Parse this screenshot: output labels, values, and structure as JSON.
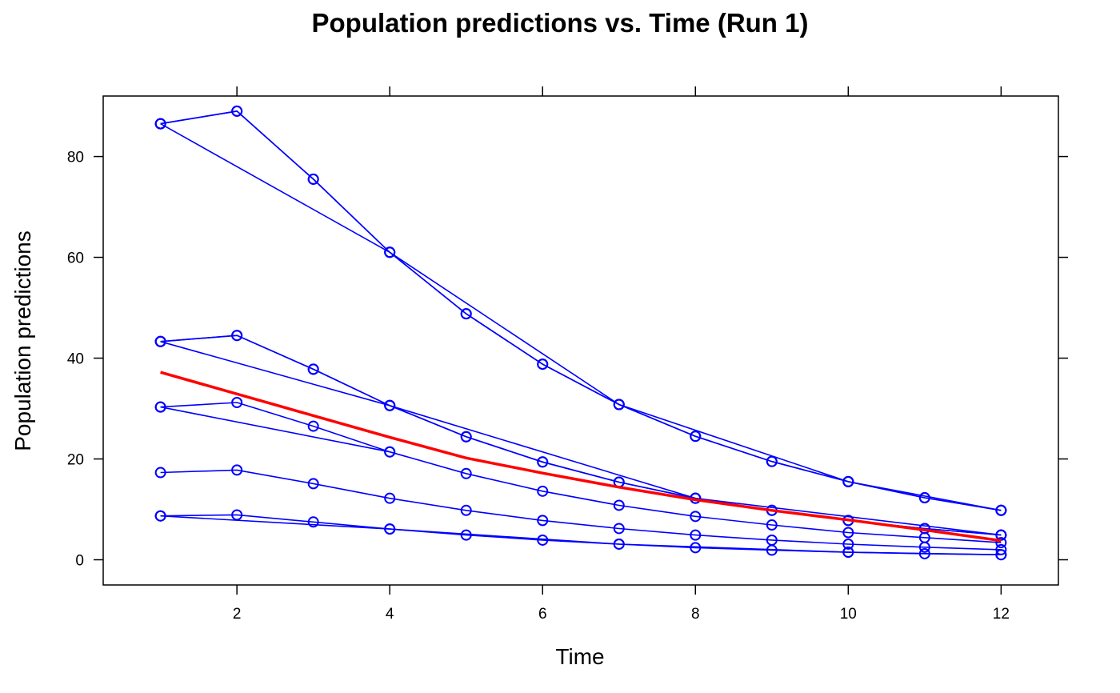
{
  "chart_data": {
    "type": "line",
    "title": "Population predictions vs. Time (Run 1)",
    "xlabel": "Time",
    "ylabel": "Population predictions",
    "xlim": [
      0.25,
      12.75
    ],
    "ylim": [
      -5,
      92
    ],
    "xticks": [
      2,
      4,
      6,
      8,
      10,
      12
    ],
    "yticks": [
      0,
      20,
      40,
      60,
      80
    ],
    "grid": false,
    "box": true,
    "series_color": "#0000ff",
    "marker": "open-circle",
    "series": [
      {
        "x": [
          1,
          2,
          3,
          4,
          5,
          6,
          7,
          8,
          9,
          10,
          11,
          12
        ],
        "y": [
          86.5,
          89.0,
          75.5,
          61.0,
          48.8,
          38.8,
          30.8,
          24.5,
          19.5,
          15.5,
          12.3,
          9.8
        ]
      },
      {
        "x": [
          1,
          2,
          3,
          4,
          5,
          6,
          7,
          8,
          9,
          10,
          11,
          12
        ],
        "y": [
          86.5,
          89.0,
          75.5,
          61.0,
          48.8,
          38.8,
          30.8,
          24.5,
          19.5,
          15.5,
          12.3,
          9.8
        ]
      },
      {
        "x": [
          1,
          4,
          7,
          10,
          12
        ],
        "y": [
          86.5,
          61.0,
          30.8,
          15.5,
          9.8
        ]
      },
      {
        "x": [
          1,
          2,
          3,
          4,
          5,
          6,
          7,
          8,
          9,
          10,
          11,
          12
        ],
        "y": [
          43.3,
          44.5,
          37.8,
          30.6,
          24.4,
          19.4,
          15.4,
          12.2,
          9.8,
          7.8,
          6.2,
          4.9
        ]
      },
      {
        "x": [
          1,
          2,
          3,
          4,
          5,
          6,
          7,
          8,
          9,
          10,
          11,
          12
        ],
        "y": [
          43.3,
          44.5,
          37.8,
          30.6,
          24.4,
          19.4,
          15.4,
          12.2,
          9.8,
          7.8,
          6.2,
          4.9
        ]
      },
      {
        "x": [
          1,
          4,
          8,
          12
        ],
        "y": [
          43.3,
          30.6,
          12.2,
          4.9
        ]
      },
      {
        "x": [
          1,
          2,
          3,
          4,
          5,
          6,
          7,
          8,
          9,
          10,
          11,
          12
        ],
        "y": [
          30.3,
          31.2,
          26.5,
          21.4,
          17.1,
          13.6,
          10.8,
          8.6,
          6.9,
          5.4,
          4.4,
          3.4
        ]
      },
      {
        "x": [
          1,
          4
        ],
        "y": [
          30.3,
          21.4
        ]
      },
      {
        "x": [
          1,
          2,
          3,
          4,
          5,
          6,
          7,
          8,
          9,
          10,
          11,
          12
        ],
        "y": [
          17.3,
          17.8,
          15.1,
          12.2,
          9.8,
          7.8,
          6.2,
          4.9,
          3.9,
          3.1,
          2.5,
          2.0
        ]
      },
      {
        "x": [
          1,
          2,
          3,
          4,
          5,
          6,
          7,
          8,
          9,
          10,
          11,
          12
        ],
        "y": [
          8.7,
          8.9,
          7.5,
          6.1,
          4.9,
          3.9,
          3.1,
          2.4,
          1.9,
          1.5,
          1.2,
          1.0
        ]
      },
      {
        "x": [
          1,
          4,
          7,
          10,
          12
        ],
        "y": [
          8.7,
          6.1,
          3.1,
          1.5,
          1.0
        ]
      }
    ],
    "trend": {
      "color": "#ff0000",
      "x": [
        1,
        2,
        3,
        4,
        5,
        6,
        7,
        8,
        9,
        10,
        11,
        12
      ],
      "y": [
        37.2,
        32.9,
        28.6,
        24.3,
        20.2,
        17.2,
        14.4,
        11.9,
        9.8,
        7.9,
        5.9,
        3.8
      ]
    }
  }
}
